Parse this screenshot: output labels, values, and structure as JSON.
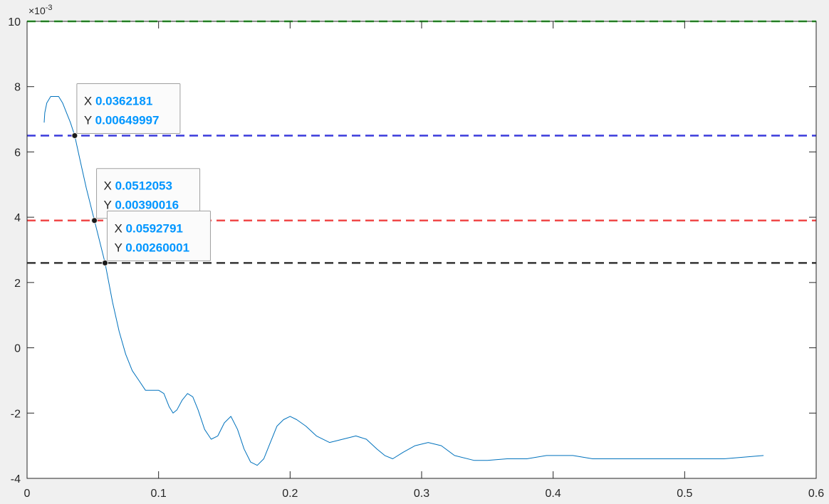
{
  "chart_data": {
    "type": "line",
    "xlim": [
      0,
      0.6
    ],
    "ylim": [
      -0.004,
      0.01
    ],
    "x_ticks": [
      0,
      0.1,
      0.2,
      0.3,
      0.4,
      0.5,
      0.6
    ],
    "x_tick_labels": [
      "0",
      "0.1",
      "0.2",
      "0.3",
      "0.4",
      "0.5",
      "0.6"
    ],
    "y_ticks": [
      -0.004,
      -0.002,
      0,
      0.002,
      0.004,
      0.006,
      0.008,
      0.01
    ],
    "y_tick_labels": [
      "-4",
      "-2",
      "0",
      "2",
      "4",
      "6",
      "8",
      "10"
    ],
    "y_exponent_base": "×10",
    "y_exponent_power": "-3",
    "grid": false,
    "colors": {
      "curve": "#0072BD",
      "background": "#f0f0f0",
      "axes_bg": "#ffffff",
      "datatip_value": "#0096FF"
    },
    "series": [
      {
        "color": "#0072BD",
        "x": [
          0.013,
          0.0135,
          0.015,
          0.018,
          0.021,
          0.024,
          0.027,
          0.03,
          0.033,
          0.0362181,
          0.04,
          0.045,
          0.0512053,
          0.0592791,
          0.065,
          0.07,
          0.075,
          0.08,
          0.085,
          0.09,
          0.095,
          0.1,
          0.104,
          0.108,
          0.111,
          0.114,
          0.118,
          0.122,
          0.126,
          0.13,
          0.135,
          0.14,
          0.145,
          0.15,
          0.155,
          0.16,
          0.165,
          0.17,
          0.175,
          0.18,
          0.185,
          0.19,
          0.195,
          0.2,
          0.205,
          0.212,
          0.22,
          0.23,
          0.24,
          0.25,
          0.258,
          0.266,
          0.272,
          0.278,
          0.286,
          0.295,
          0.305,
          0.315,
          0.325,
          0.34,
          0.35,
          0.365,
          0.38,
          0.395,
          0.403,
          0.415,
          0.43,
          0.45,
          0.475,
          0.5,
          0.53,
          0.56
        ],
        "y": [
          0.0069,
          0.0072,
          0.0075,
          0.0077,
          0.0077,
          0.0077,
          0.0075,
          0.0072,
          0.0069,
          0.0065,
          0.0058,
          0.0049,
          0.0039,
          0.0026,
          0.0014,
          0.0005,
          -0.0002,
          -0.0007,
          -0.001,
          -0.0013,
          -0.0013,
          -0.0013,
          -0.0014,
          -0.0018,
          -0.002,
          -0.0019,
          -0.0016,
          -0.0014,
          -0.0015,
          -0.0019,
          -0.0025,
          -0.0028,
          -0.0027,
          -0.0023,
          -0.0021,
          -0.0025,
          -0.0031,
          -0.0035,
          -0.0036,
          -0.0034,
          -0.0029,
          -0.0024,
          -0.0022,
          -0.0021,
          -0.0022,
          -0.0024,
          -0.0027,
          -0.0029,
          -0.0028,
          -0.0027,
          -0.0028,
          -0.0031,
          -0.0033,
          -0.0034,
          -0.0032,
          -0.003,
          -0.0029,
          -0.003,
          -0.0033,
          -0.00345,
          -0.00345,
          -0.0034,
          -0.0034,
          -0.0033,
          -0.0033,
          -0.0033,
          -0.0034,
          -0.0034,
          -0.0034,
          -0.0034,
          -0.0034,
          -0.0033
        ]
      }
    ],
    "reference_lines": [
      {
        "y": 0.01,
        "color": "#22cc22"
      },
      {
        "y": 0.0065,
        "color": "#3a3adc"
      },
      {
        "y": 0.0039,
        "color": "#f04848"
      },
      {
        "y": 0.0026,
        "color": "#333333"
      }
    ],
    "datatips": [
      {
        "x": 0.0362181,
        "y": 0.00649997,
        "x_label": "X",
        "x_text": "0.0362181",
        "y_label": "Y",
        "y_text": "0.00649997"
      },
      {
        "x": 0.0512053,
        "y": 0.00390016,
        "x_label": "X",
        "x_text": "0.0512053",
        "y_label": "Y",
        "y_text": "0.00390016"
      },
      {
        "x": 0.0592791,
        "y": 0.00260001,
        "x_label": "X",
        "x_text": "0.0592791",
        "y_label": "Y",
        "y_text": "0.00260001"
      }
    ]
  }
}
